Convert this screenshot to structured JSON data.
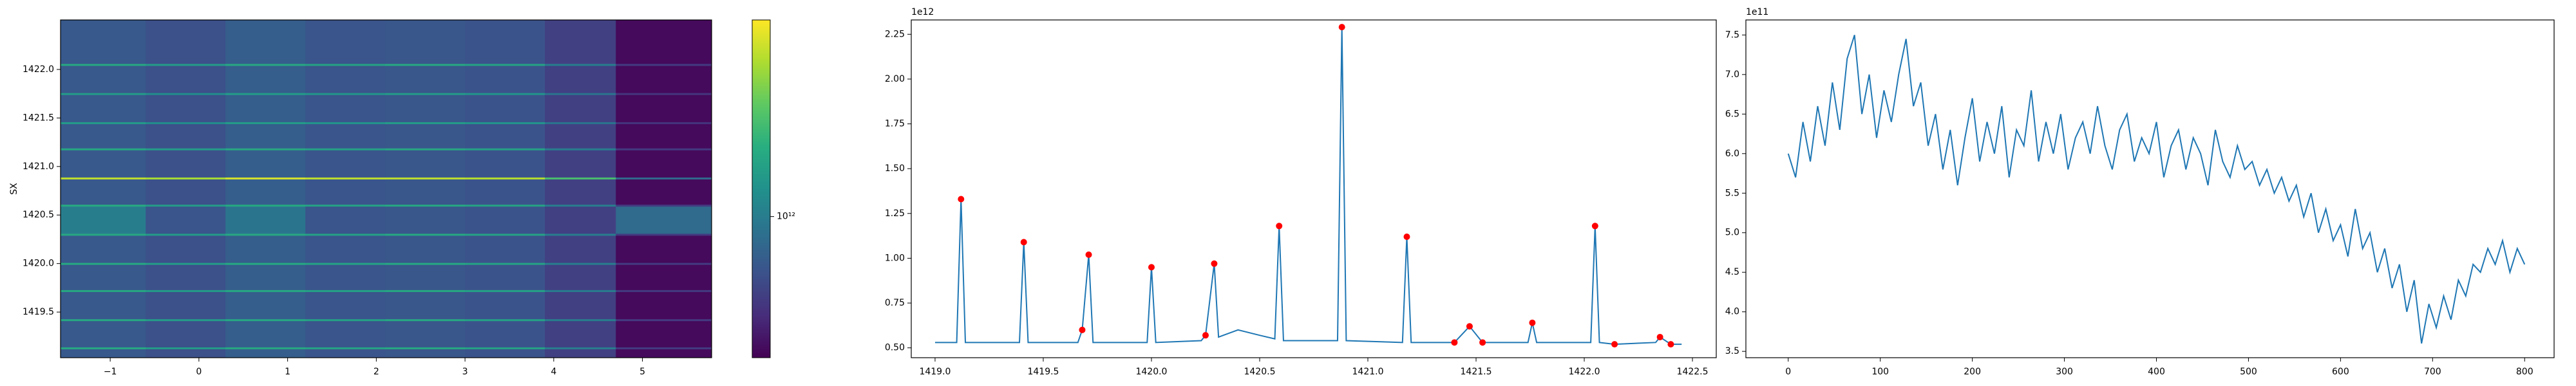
{
  "chart_data": [
    {
      "type": "heatmap",
      "ylabel": "SX",
      "colormap": "viridis",
      "x_edges": [
        -1.56,
        -0.6,
        0.3,
        1.2,
        2.1,
        3.0,
        3.9,
        4.7,
        5.78
      ],
      "y_edges": [
        1419.03,
        1419.12,
        1419.14,
        1419.41,
        1419.43,
        1419.71,
        1419.73,
        1419.99,
        1420.01,
        1420.29,
        1420.31,
        1420.59,
        1420.61,
        1420.87,
        1420.89,
        1421.17,
        1421.19,
        1421.44,
        1421.46,
        1421.74,
        1421.76,
        1422.04,
        1422.06,
        1422.51
      ],
      "z": [
        [
          820000000000.0,
          780000000000.0,
          840000000000.0,
          800000000000.0,
          810000000000.0,
          790000000000.0,
          720000000000.0,
          570000000000.0
        ],
        [
          1300000000000.0,
          1200000000000.0,
          1300000000000.0,
          1250000000000.0,
          1300000000000.0,
          1250000000000.0,
          1000000000000.0,
          700000000000.0
        ],
        [
          820000000000.0,
          780000000000.0,
          840000000000.0,
          800000000000.0,
          810000000000.0,
          790000000000.0,
          720000000000.0,
          570000000000.0
        ],
        [
          1300000000000.0,
          1200000000000.0,
          1300000000000.0,
          1250000000000.0,
          1300000000000.0,
          1250000000000.0,
          1000000000000.0,
          700000000000.0
        ],
        [
          820000000000.0,
          780000000000.0,
          840000000000.0,
          800000000000.0,
          810000000000.0,
          790000000000.0,
          720000000000.0,
          570000000000.0
        ],
        [
          1300000000000.0,
          1200000000000.0,
          1300000000000.0,
          1250000000000.0,
          1300000000000.0,
          1250000000000.0,
          1000000000000.0,
          700000000000.0
        ],
        [
          820000000000.0,
          780000000000.0,
          840000000000.0,
          800000000000.0,
          810000000000.0,
          790000000000.0,
          720000000000.0,
          570000000000.0
        ],
        [
          1300000000000.0,
          1200000000000.0,
          1300000000000.0,
          1250000000000.0,
          1300000000000.0,
          1250000000000.0,
          1000000000000.0,
          700000000000.0
        ],
        [
          820000000000.0,
          780000000000.0,
          840000000000.0,
          800000000000.0,
          810000000000.0,
          790000000000.0,
          720000000000.0,
          570000000000.0
        ],
        [
          1300000000000.0,
          1200000000000.0,
          1300000000000.0,
          1250000000000.0,
          1300000000000.0,
          1250000000000.0,
          1000000000000.0,
          700000000000.0
        ],
        [
          1000000000000.0,
          800000000000.0,
          950000000000.0,
          800000000000.0,
          810000000000.0,
          790000000000.0,
          720000000000.0,
          900000000000.0
        ],
        [
          1300000000000.0,
          1200000000000.0,
          1300000000000.0,
          1250000000000.0,
          1300000000000.0,
          1250000000000.0,
          1000000000000.0,
          700000000000.0
        ],
        [
          820000000000.0,
          780000000000.0,
          840000000000.0,
          800000000000.0,
          810000000000.0,
          790000000000.0,
          720000000000.0,
          570000000000.0
        ],
        [
          2000000000000.0,
          1900000000000.0,
          2100000000000.0,
          2000000000000.0,
          2000000000000.0,
          1950000000000.0,
          1500000000000.0,
          900000000000.0
        ],
        [
          820000000000.0,
          780000000000.0,
          840000000000.0,
          800000000000.0,
          810000000000.0,
          790000000000.0,
          720000000000.0,
          570000000000.0
        ],
        [
          1300000000000.0,
          1200000000000.0,
          1300000000000.0,
          1250000000000.0,
          1300000000000.0,
          1250000000000.0,
          1000000000000.0,
          700000000000.0
        ],
        [
          820000000000.0,
          780000000000.0,
          840000000000.0,
          800000000000.0,
          810000000000.0,
          790000000000.0,
          720000000000.0,
          570000000000.0
        ],
        [
          1200000000000.0,
          1100000000000.0,
          1200000000000.0,
          1150000000000.0,
          1200000000000.0,
          1150000000000.0,
          950000000000.0,
          680000000000.0
        ],
        [
          820000000000.0,
          780000000000.0,
          840000000000.0,
          800000000000.0,
          810000000000.0,
          790000000000.0,
          720000000000.0,
          570000000000.0
        ],
        [
          1200000000000.0,
          1100000000000.0,
          1200000000000.0,
          1150000000000.0,
          1200000000000.0,
          1150000000000.0,
          950000000000.0,
          680000000000.0
        ],
        [
          820000000000.0,
          780000000000.0,
          840000000000.0,
          800000000000.0,
          810000000000.0,
          790000000000.0,
          720000000000.0,
          570000000000.0
        ],
        [
          1300000000000.0,
          1200000000000.0,
          1300000000000.0,
          1250000000000.0,
          1300000000000.0,
          1250000000000.0,
          1000000000000.0,
          700000000000.0
        ],
        [
          820000000000.0,
          780000000000.0,
          840000000000.0,
          800000000000.0,
          810000000000.0,
          790000000000.0,
          720000000000.0,
          570000000000.0
        ]
      ],
      "xlim": [
        -1.56,
        5.78
      ],
      "ylim": [
        1419.03,
        1422.51
      ],
      "xticks": [
        {
          "value": -1,
          "label": "−1"
        },
        0,
        1,
        2,
        3,
        4,
        5
      ],
      "yticks": [
        1419.5,
        {
          "value": 1420,
          "label": "1420.0"
        },
        1420.5,
        {
          "value": 1421,
          "label": "1421.0"
        },
        1421.5,
        {
          "value": 1422,
          "label": "1422.0"
        }
      ],
      "colorbar": {
        "scale": "log",
        "clim": [
          550000000000.0,
          2300000000000.0
        ],
        "ticks": [
          {
            "value": 1000000000000.0,
            "label": "10¹²"
          }
        ]
      }
    },
    {
      "type": "line",
      "y_offset": "1e12",
      "xlim": [
        1418.89,
        1422.61
      ],
      "ylim": [
        0.445,
        2.33
      ],
      "xticks": [
        {
          "value": 1419,
          "label": "1419.0"
        },
        1419.5,
        {
          "value": 1420,
          "label": "1420.0"
        },
        1420.5,
        {
          "value": 1421,
          "label": "1421.0"
        },
        1421.5,
        {
          "value": 1422,
          "label": "1422.0"
        },
        1422.5
      ],
      "yticks": [
        {
          "value": 0.5,
          "label": "0.50"
        },
        0.75,
        {
          "value": 1,
          "label": "1.00"
        },
        1.25,
        {
          "value": 1.5,
          "label": "1.50"
        },
        1.75,
        {
          "value": 2,
          "label": "2.00"
        },
        2.25
      ],
      "series": [
        {
          "type": "line",
          "color": "#1f77b4",
          "x": [
            1419.0,
            1419.1,
            1419.12,
            1419.14,
            1419.39,
            1419.41,
            1419.43,
            1419.66,
            1419.68,
            1419.71,
            1419.73,
            1419.98,
            1420.0,
            1420.02,
            1420.23,
            1420.25,
            1420.29,
            1420.31,
            1420.4,
            1420.5,
            1420.57,
            1420.59,
            1420.61,
            1420.86,
            1420.88,
            1420.9,
            1421.16,
            1421.18,
            1421.2,
            1421.4,
            1421.47,
            1421.53,
            1421.74,
            1421.76,
            1421.78,
            1422.03,
            1422.05,
            1422.07,
            1422.14,
            1422.33,
            1422.35,
            1422.4,
            1422.45
          ],
          "values": [
            0.53,
            0.53,
            1.33,
            0.53,
            0.53,
            1.09,
            0.53,
            0.53,
            0.6,
            1.02,
            0.53,
            0.53,
            0.95,
            0.53,
            0.54,
            0.57,
            0.97,
            0.56,
            0.6,
            0.57,
            0.55,
            1.18,
            0.54,
            0.54,
            2.29,
            0.54,
            0.53,
            1.12,
            0.53,
            0.53,
            0.62,
            0.53,
            0.53,
            0.64,
            0.53,
            0.53,
            1.18,
            0.53,
            0.52,
            0.53,
            0.56,
            0.52,
            0.52
          ]
        },
        {
          "type": "scatter",
          "color": "#ff0000",
          "x": [
            1419.12,
            1419.41,
            1419.68,
            1419.71,
            1420.0,
            1420.25,
            1420.29,
            1420.59,
            1420.88,
            1421.18,
            1421.4,
            1421.47,
            1421.53,
            1421.76,
            1422.05,
            1422.14,
            1422.35,
            1422.4
          ],
          "values": [
            1.33,
            1.09,
            0.6,
            1.02,
            0.95,
            0.57,
            0.97,
            1.18,
            2.29,
            1.12,
            0.53,
            0.62,
            0.53,
            0.64,
            1.18,
            0.52,
            0.56,
            0.52
          ]
        }
      ]
    },
    {
      "type": "line",
      "y_offset": "1e11",
      "xlim": [
        -46,
        832
      ],
      "ylim": [
        3.42,
        7.69
      ],
      "xticks": [
        0,
        100,
        200,
        300,
        400,
        500,
        600,
        700,
        800
      ],
      "yticks": [
        3.5,
        {
          "value": 4,
          "label": "4.0"
        },
        4.5,
        {
          "value": 5,
          "label": "5.0"
        },
        5.5,
        {
          "value": 6,
          "label": "6.0"
        },
        6.5,
        {
          "value": 7,
          "label": "7.0"
        },
        7.5
      ],
      "series": [
        {
          "type": "line",
          "color": "#1f77b4",
          "x": [
            0,
            8,
            16,
            24,
            32,
            40,
            48,
            56,
            64,
            72,
            80,
            88,
            96,
            104,
            112,
            120,
            128,
            136,
            144,
            152,
            160,
            168,
            176,
            184,
            192,
            200,
            208,
            216,
            224,
            232,
            240,
            248,
            256,
            264,
            272,
            280,
            288,
            296,
            304,
            312,
            320,
            328,
            336,
            344,
            352,
            360,
            368,
            376,
            384,
            392,
            400,
            408,
            416,
            424,
            432,
            440,
            448,
            456,
            464,
            472,
            480,
            488,
            496,
            504,
            512,
            520,
            528,
            536,
            544,
            552,
            560,
            568,
            576,
            584,
            592,
            600,
            608,
            616,
            624,
            632,
            640,
            648,
            656,
            664,
            672,
            680,
            688,
            696,
            704,
            712,
            720,
            728,
            736,
            744,
            752,
            760,
            768,
            776,
            784,
            792,
            800
          ],
          "values": [
            6.0,
            5.7,
            6.4,
            5.9,
            6.6,
            6.1,
            6.9,
            6.3,
            7.2,
            7.5,
            6.5,
            7.0,
            6.2,
            6.8,
            6.4,
            7.0,
            7.45,
            6.6,
            6.9,
            6.1,
            6.5,
            5.8,
            6.3,
            5.6,
            6.2,
            6.7,
            5.9,
            6.4,
            6.0,
            6.6,
            5.7,
            6.3,
            6.1,
            6.8,
            5.9,
            6.4,
            6.0,
            6.5,
            5.8,
            6.2,
            6.4,
            6.0,
            6.6,
            6.1,
            5.8,
            6.3,
            6.5,
            5.9,
            6.2,
            6.0,
            6.4,
            5.7,
            6.1,
            6.3,
            5.8,
            6.2,
            6.0,
            5.6,
            6.3,
            5.9,
            5.7,
            6.1,
            5.8,
            5.9,
            5.6,
            5.8,
            5.5,
            5.7,
            5.4,
            5.6,
            5.2,
            5.5,
            5.0,
            5.3,
            4.9,
            5.1,
            4.7,
            5.3,
            4.8,
            5.0,
            4.5,
            4.8,
            4.3,
            4.6,
            4.0,
            4.4,
            3.6,
            4.1,
            3.8,
            4.2,
            3.9,
            4.4,
            4.2,
            4.6,
            4.5,
            4.8,
            4.6,
            4.9,
            4.5,
            4.8,
            4.6
          ]
        }
      ]
    }
  ]
}
